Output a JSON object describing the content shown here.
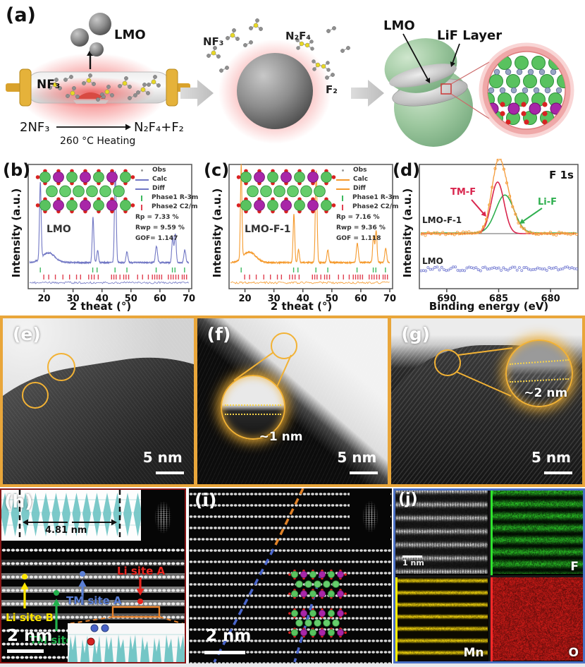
{
  "panel_a": {
    "label": "(a)",
    "lmo_top": "LMO",
    "nf3_tube": "NF₃",
    "eq_left": "2NF₃",
    "eq_cond": "260 °C Heating",
    "eq_right": "N₂F₄+F₂",
    "nf3_mid": "NF₃",
    "n2f4": "N₂F₄",
    "f2": "F₂",
    "lmo_right": "LMO",
    "lif_layer": "LiF Layer"
  },
  "panel_b": {
    "label": "(b)",
    "sample": "LMO",
    "legend": [
      "Obs",
      "Calc",
      "Diff",
      "Phase1 R-3m",
      "Phase2 C2/m"
    ],
    "stats": [
      "Rp = 7.33 %",
      "Rwp = 9.59 %",
      "GOF= 1.147"
    ],
    "xlabel": "2 theat (°)",
    "ylabel": "Intensity (a.u.)"
  },
  "panel_c": {
    "label": "(c)",
    "sample": "LMO-F-1",
    "legend": [
      "Obs",
      "Calc",
      "Diff",
      "Phase1 R-3m",
      "Phase2 C2/m"
    ],
    "stats": [
      "Rp = 7.16 %",
      "Rwp = 9.36 %",
      "GOF = 1.118"
    ],
    "xlabel": "2 theat (°)",
    "ylabel": "Intensity (a.u.)"
  },
  "panel_d": {
    "label": "(d)",
    "title": "F 1s",
    "trace_top": "LMO-F-1",
    "trace_bottom": "LMO",
    "comp_red": "TM-F",
    "comp_green": "Li-F",
    "xlabel": "Binding energy (eV)",
    "ylabel": "Intensity (a.u.)"
  },
  "panel_e": {
    "label": "(e)",
    "scalebar": "5 nm"
  },
  "panel_f": {
    "label": "(f)",
    "scalebar": "5 nm",
    "thickness": "~1 nm"
  },
  "panel_g": {
    "label": "(g)",
    "scalebar": "5 nm",
    "thickness": "~2 nm"
  },
  "panel_h": {
    "label": "(h)",
    "distance": "4.81 nm",
    "site_li_b": "Li site B",
    "site_tm_b": "TM site B",
    "site_tm_a": "TM site A",
    "site_li_a": "Li site A",
    "scalebar": "2 nm"
  },
  "panel_i": {
    "label": "(i)",
    "scalebar": "2 nm"
  },
  "panel_j": {
    "label": "(j)",
    "scalebar": "1 nm",
    "map_f": "F",
    "map_mn": "Mn",
    "map_o": "O"
  },
  "colors": {
    "xrd_lmo": "#7177c4",
    "xrd_lmo_f1": "#f59a2d",
    "phase1_tick": "#3db960",
    "phase2_tick": "#e04050",
    "xps_obs": "#f5a043",
    "xps_tm_f": "#d9264e",
    "xps_li_f": "#2faf4f",
    "xps_lmo": "#8087d6",
    "row_border": "#e9a63a",
    "map_border": "#4a6fc4",
    "site_li_b": "#ffe600",
    "site_tm_b": "#21b14c",
    "site_tm_a": "#5b7fd4",
    "site_li_a": "#e8251f",
    "profile_teal": "#74c6c6",
    "zoom_circle": "#f2b235"
  },
  "chart_data": [
    {
      "type": "line",
      "name": "XRD Rietveld refinement of LMO",
      "sample": "LMO",
      "xlabel": "2 theat (°)",
      "ylabel": "Intensity (a.u.)",
      "xlim": [
        15,
        70
      ],
      "xticks": [
        20,
        30,
        40,
        50,
        60,
        70
      ],
      "legend": [
        "Obs",
        "Calc",
        "Diff",
        "Phase1 R-3m",
        "Phase2 C2/m"
      ],
      "series_color": "#7177c4",
      "peaks": [
        {
          "two_theta": 18.7,
          "rel_intensity": 0.8,
          "width": 0.28
        },
        {
          "two_theta": 21.5,
          "rel_intensity": 0.1,
          "width": 2.2
        },
        {
          "two_theta": 36.9,
          "rel_intensity": 0.47,
          "width": 0.28
        },
        {
          "two_theta": 38.5,
          "rel_intensity": 0.13,
          "width": 0.28
        },
        {
          "two_theta": 44.6,
          "rel_intensity": 0.95,
          "width": 0.3
        },
        {
          "two_theta": 48.6,
          "rel_intensity": 0.11,
          "width": 0.32
        },
        {
          "two_theta": 58.8,
          "rel_intensity": 0.17,
          "width": 0.34
        },
        {
          "two_theta": 64.4,
          "rel_intensity": 0.26,
          "width": 0.3
        },
        {
          "two_theta": 65.3,
          "rel_intensity": 0.3,
          "width": 0.3
        },
        {
          "two_theta": 68.6,
          "rel_intensity": 0.13,
          "width": 0.32
        }
      ],
      "phase1_ticks": [
        18.7,
        36.8,
        38.3,
        44.5,
        48.6,
        58.7,
        64.3,
        65.2,
        68.5
      ],
      "phase2_ticks": [
        19.9,
        21.6,
        23.9,
        26.5,
        28.8,
        31.2,
        32.6,
        35.4,
        36.4,
        37.3,
        38.7,
        43.3,
        44.1,
        44.9,
        46.2,
        47.5,
        48.3,
        49.2,
        52.3,
        54.0,
        56.0,
        57.4,
        58.2,
        59.0,
        59.8,
        60.6,
        62.9,
        63.8,
        64.6,
        65.5,
        66.4,
        67.7,
        68.4,
        69.2
      ],
      "refinement": {
        "Rp": "7.33 %",
        "Rwp": "9.59 %",
        "GOF": "1.147"
      }
    },
    {
      "type": "line",
      "name": "XRD Rietveld refinement of LMO-F-1",
      "sample": "LMO-F-1",
      "xlabel": "2 theat (°)",
      "ylabel": "Intensity (a.u.)",
      "xlim": [
        15,
        70
      ],
      "xticks": [
        20,
        30,
        40,
        50,
        60,
        70
      ],
      "legend": [
        "Obs",
        "Calc",
        "Diff",
        "Phase1 R-3m",
        "Phase2 C2/m"
      ],
      "series_color": "#f59a2d",
      "peaks": [
        {
          "two_theta": 18.7,
          "rel_intensity": 0.97,
          "width": 0.26
        },
        {
          "two_theta": 21.5,
          "rel_intensity": 0.11,
          "width": 2.2
        },
        {
          "two_theta": 36.9,
          "rel_intensity": 0.5,
          "width": 0.28
        },
        {
          "two_theta": 38.5,
          "rel_intensity": 0.14,
          "width": 0.28
        },
        {
          "two_theta": 44.6,
          "rel_intensity": 0.96,
          "width": 0.3
        },
        {
          "two_theta": 48.6,
          "rel_intensity": 0.13,
          "width": 0.32
        },
        {
          "two_theta": 58.8,
          "rel_intensity": 0.2,
          "width": 0.34
        },
        {
          "two_theta": 64.4,
          "rel_intensity": 0.28,
          "width": 0.3
        },
        {
          "two_theta": 65.3,
          "rel_intensity": 0.33,
          "width": 0.3
        },
        {
          "two_theta": 68.6,
          "rel_intensity": 0.15,
          "width": 0.32
        }
      ],
      "phase1_ticks": [
        18.7,
        36.8,
        38.3,
        44.5,
        48.6,
        58.7,
        64.3,
        65.2,
        68.5
      ],
      "phase2_ticks": [
        19.9,
        21.6,
        23.9,
        26.5,
        28.8,
        31.2,
        32.6,
        35.4,
        36.4,
        37.3,
        38.7,
        43.3,
        44.1,
        44.9,
        46.2,
        47.5,
        48.3,
        49.2,
        52.3,
        54.0,
        56.0,
        57.4,
        58.2,
        59.0,
        59.8,
        60.6,
        62.9,
        63.8,
        64.6,
        65.5,
        66.4,
        67.7,
        68.4,
        69.2
      ],
      "refinement": {
        "Rp": "7.16 %",
        "Rwp": "9.36 %",
        "GOF": "1.118"
      }
    },
    {
      "type": "line",
      "name": "XPS F 1s spectra",
      "title": "F 1s",
      "xlabel": "Binding energy (eV)",
      "ylabel": "Intensity (a.u.)",
      "xlim": [
        692.5,
        677.5
      ],
      "x_reversed": true,
      "xticks": [
        690,
        685,
        680
      ],
      "series": [
        {
          "name": "LMO-F-1",
          "style": "scatter+fit",
          "color": "#f5a043"
        },
        {
          "name": "TM-F",
          "style": "component",
          "color": "#d9264e",
          "center_eV": 685.1,
          "rel_amplitude": 0.83,
          "sigma_eV": 0.62
        },
        {
          "name": "Li-F",
          "style": "component",
          "color": "#2faf4f",
          "center_eV": 684.4,
          "rel_amplitude": 0.61,
          "sigma_eV": 0.88
        },
        {
          "name": "LMO",
          "style": "flat-noise",
          "color": "#8087d6",
          "rel_level": 0.05
        }
      ]
    }
  ]
}
